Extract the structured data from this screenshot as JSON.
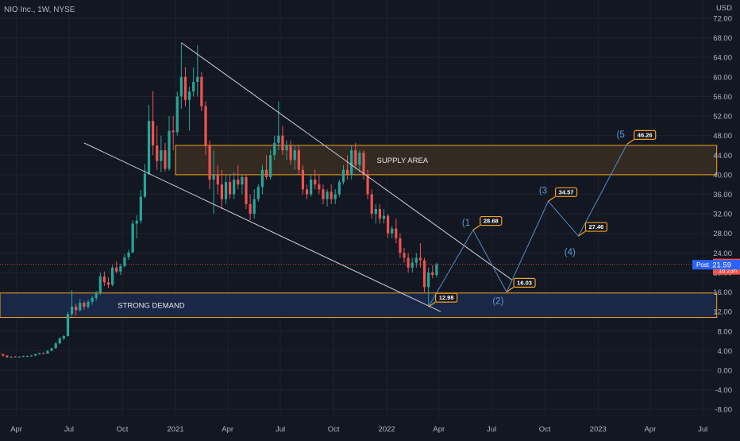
{
  "symbol_label": "NIO Inc., 1W, NYSE",
  "currency": "USD",
  "colors": {
    "background": "#131722",
    "grid": "#1e222d",
    "up": "#26a69a",
    "down": "#ef5350",
    "axis_text": "#b2b5be",
    "trendline": "#d1d4dc",
    "projection": "#4f8fc9",
    "wave_label": "#5b9bd5",
    "callout_border": "#f7a21b",
    "supply_fill": "#3a2e22",
    "demand_fill": "#1c2a4d",
    "zone_border": "#f7a21b",
    "last_price_bg": "#ef5350",
    "post_bg": "#2962ff"
  },
  "chart_data": {
    "type": "candlestick",
    "timeframe": "1W",
    "y_axis": {
      "ticks": [
        "72.00",
        "68.00",
        "64.00",
        "60.00",
        "56.00",
        "52.00",
        "48.00",
        "44.00",
        "40.00",
        "36.00",
        "32.00",
        "28.00",
        "24.00",
        "20.00",
        "16.00",
        "12.00",
        "8.00",
        "4.00",
        "0.00",
        "-4.00",
        "-8.00"
      ],
      "range": [
        -10,
        74
      ]
    },
    "x_axis": {
      "ticks": [
        "Apr",
        "Jul",
        "Oct",
        "2021",
        "Apr",
        "Jul",
        "Oct",
        "2022",
        "Apr",
        "Jul",
        "Oct",
        "2023",
        "Apr",
        "Jul"
      ],
      "range": [
        "2020-03-01",
        "2023-08-15"
      ]
    },
    "candles_approx": [
      [
        "2020-03-02",
        3.6,
        3.7,
        3.2,
        3.3
      ],
      [
        "2020-03-09",
        3.3,
        3.4,
        2.8,
        3.0
      ],
      [
        "2020-03-16",
        3.0,
        3.1,
        2.5,
        2.7
      ],
      [
        "2020-03-23",
        2.7,
        2.9,
        2.5,
        2.8
      ],
      [
        "2020-03-30",
        2.8,
        2.9,
        2.6,
        2.7
      ],
      [
        "2020-04-06",
        2.7,
        2.9,
        2.6,
        2.8
      ],
      [
        "2020-04-13",
        2.8,
        3.0,
        2.7,
        2.9
      ],
      [
        "2020-04-20",
        2.9,
        3.0,
        2.8,
        2.9
      ],
      [
        "2020-04-27",
        2.9,
        3.1,
        2.8,
        3.0
      ],
      [
        "2020-05-04",
        3.0,
        3.4,
        2.9,
        3.3
      ],
      [
        "2020-05-11",
        3.3,
        3.6,
        3.2,
        3.5
      ],
      [
        "2020-05-18",
        3.5,
        3.7,
        3.3,
        3.4
      ],
      [
        "2020-05-25",
        3.4,
        4.1,
        3.4,
        4.0
      ],
      [
        "2020-06-01",
        4.0,
        4.6,
        3.9,
        4.5
      ],
      [
        "2020-06-08",
        4.5,
        5.8,
        4.4,
        5.5
      ],
      [
        "2020-06-15",
        5.5,
        6.8,
        5.4,
        6.5
      ],
      [
        "2020-06-22",
        6.5,
        7.2,
        6.2,
        7.0
      ],
      [
        "2020-06-29",
        7.0,
        11.9,
        6.9,
        11.5
      ],
      [
        "2020-07-06",
        11.5,
        16.4,
        11.0,
        13.0
      ],
      [
        "2020-07-13",
        13.0,
        13.6,
        11.2,
        12.3
      ],
      [
        "2020-07-20",
        12.3,
        14.6,
        12.0,
        13.8
      ],
      [
        "2020-07-27",
        13.8,
        14.2,
        12.4,
        13.0
      ],
      [
        "2020-08-03",
        13.0,
        14.5,
        12.6,
        14.0
      ],
      [
        "2020-08-10",
        14.0,
        15.2,
        13.4,
        14.8
      ],
      [
        "2020-08-17",
        14.8,
        16.2,
        14.2,
        15.9
      ],
      [
        "2020-08-24",
        15.9,
        20.0,
        15.4,
        19.2
      ],
      [
        "2020-08-31",
        19.2,
        20.2,
        17.2,
        18.0
      ],
      [
        "2020-09-07",
        18.0,
        19.0,
        16.8,
        17.5
      ],
      [
        "2020-09-14",
        17.5,
        21.5,
        17.2,
        21.0
      ],
      [
        "2020-09-21",
        21.0,
        22.3,
        19.8,
        20.2
      ],
      [
        "2020-09-28",
        20.2,
        21.8,
        19.5,
        21.3
      ],
      [
        "2020-10-05",
        21.3,
        23.8,
        21.0,
        23.1
      ],
      [
        "2020-10-12",
        23.1,
        24.7,
        22.6,
        24.1
      ],
      [
        "2020-10-19",
        24.1,
        30.7,
        24.0,
        30.0
      ],
      [
        "2020-10-26",
        30.0,
        31.7,
        27.0,
        30.6
      ],
      [
        "2020-11-02",
        30.6,
        36.9,
        30.0,
        35.5
      ],
      [
        "2020-11-09",
        35.5,
        42.2,
        35.2,
        40.2
      ],
      [
        "2020-11-16",
        40.2,
        54.3,
        40.0,
        51.0
      ],
      [
        "2020-11-23",
        51.0,
        57.1,
        44.0,
        46.0
      ],
      [
        "2020-11-30",
        46.0,
        50.0,
        41.0,
        42.8
      ],
      [
        "2020-12-07",
        42.8,
        48.0,
        40.5,
        45.0
      ],
      [
        "2020-12-14",
        45.0,
        46.5,
        40.6,
        41.2
      ],
      [
        "2020-12-21",
        41.2,
        52.0,
        40.8,
        49.0
      ],
      [
        "2020-12-28",
        49.0,
        52.0,
        45.0,
        48.7
      ],
      [
        "2021-01-04",
        48.7,
        57.0,
        48.0,
        56.0
      ],
      [
        "2021-01-11",
        56.0,
        67.0,
        53.5,
        60.0
      ],
      [
        "2021-01-18",
        60.0,
        62.0,
        54.0,
        55.3
      ],
      [
        "2021-01-25",
        55.3,
        58.0,
        49.0,
        57.0
      ],
      [
        "2021-02-01",
        57.0,
        62.0,
        56.0,
        59.0
      ],
      [
        "2021-02-08",
        59.0,
        66.5,
        56.0,
        60.0
      ],
      [
        "2021-02-15",
        60.0,
        61.0,
        53.0,
        54.0
      ],
      [
        "2021-02-22",
        54.0,
        55.0,
        44.0,
        46.0
      ],
      [
        "2021-03-01",
        46.0,
        47.0,
        37.0,
        39.0
      ],
      [
        "2021-03-08",
        39.0,
        45.0,
        32.0,
        40.0
      ],
      [
        "2021-03-15",
        40.0,
        42.0,
        36.0,
        38.0
      ],
      [
        "2021-03-22",
        38.0,
        41.0,
        33.0,
        35.0
      ],
      [
        "2021-03-29",
        35.0,
        40.0,
        34.0,
        38.5
      ],
      [
        "2021-04-05",
        38.5,
        40.0,
        35.0,
        36.0
      ],
      [
        "2021-04-12",
        36.0,
        40.5,
        35.0,
        39.0
      ],
      [
        "2021-04-19",
        39.0,
        42.0,
        37.0,
        38.0
      ],
      [
        "2021-04-26",
        38.0,
        40.0,
        36.0,
        39.5
      ],
      [
        "2021-05-03",
        39.5,
        40.0,
        33.0,
        34.0
      ],
      [
        "2021-05-10",
        34.0,
        36.0,
        30.7,
        32.0
      ],
      [
        "2021-05-17",
        32.0,
        37.0,
        31.0,
        35.0
      ],
      [
        "2021-05-24",
        35.0,
        38.0,
        34.5,
        37.5
      ],
      [
        "2021-05-31",
        37.5,
        42.0,
        36.0,
        41.0
      ],
      [
        "2021-06-07",
        41.0,
        44.0,
        39.0,
        39.5
      ],
      [
        "2021-06-14",
        39.5,
        45.0,
        39.0,
        44.0
      ],
      [
        "2021-06-21",
        44.0,
        48.0,
        43.0,
        46.5
      ],
      [
        "2021-06-28",
        46.5,
        55.0,
        45.0,
        48.0
      ],
      [
        "2021-07-05",
        48.0,
        50.0,
        44.0,
        45.0
      ],
      [
        "2021-07-12",
        45.0,
        47.0,
        43.0,
        46.0
      ],
      [
        "2021-07-19",
        46.0,
        47.0,
        42.0,
        43.0
      ],
      [
        "2021-07-26",
        43.0,
        46.0,
        41.0,
        45.0
      ],
      [
        "2021-08-02",
        45.0,
        46.0,
        40.0,
        41.0
      ],
      [
        "2021-08-09",
        41.0,
        42.0,
        36.0,
        37.0
      ],
      [
        "2021-08-16",
        37.0,
        38.0,
        35.0,
        36.0
      ],
      [
        "2021-08-23",
        36.0,
        40.0,
        35.5,
        39.0
      ],
      [
        "2021-08-30",
        39.0,
        41.0,
        37.0,
        38.0
      ],
      [
        "2021-09-06",
        38.0,
        40.0,
        36.0,
        37.0
      ],
      [
        "2021-09-13",
        37.0,
        38.0,
        34.0,
        35.0
      ],
      [
        "2021-09-20",
        35.0,
        37.0,
        33.5,
        36.5
      ],
      [
        "2021-09-27",
        36.5,
        38.0,
        34.0,
        35.0
      ],
      [
        "2021-10-04",
        35.0,
        37.0,
        34.0,
        36.0
      ],
      [
        "2021-10-11",
        36.0,
        39.0,
        35.5,
        38.5
      ],
      [
        "2021-10-18",
        38.5,
        42.0,
        38.0,
        41.0
      ],
      [
        "2021-10-25",
        41.0,
        44.0,
        39.0,
        40.0
      ],
      [
        "2021-11-01",
        40.0,
        46.0,
        39.0,
        45.0
      ],
      [
        "2021-11-08",
        45.0,
        46.5,
        41.0,
        42.0
      ],
      [
        "2021-11-15",
        42.0,
        45.0,
        40.5,
        44.5
      ],
      [
        "2021-11-22",
        44.5,
        45.0,
        39.0,
        40.0
      ],
      [
        "2021-11-29",
        40.0,
        41.0,
        35.0,
        36.0
      ],
      [
        "2021-12-06",
        36.0,
        37.0,
        31.0,
        32.0
      ],
      [
        "2021-12-13",
        32.0,
        34.0,
        30.0,
        33.0
      ],
      [
        "2021-12-20",
        33.0,
        34.0,
        30.0,
        31.0
      ],
      [
        "2021-12-27",
        31.0,
        33.0,
        30.0,
        31.6
      ],
      [
        "2022-01-03",
        31.6,
        32.0,
        27.0,
        28.0
      ],
      [
        "2022-01-10",
        28.0,
        29.5,
        27.0,
        29.0
      ],
      [
        "2022-01-17",
        29.0,
        31.0,
        26.0,
        27.0
      ],
      [
        "2022-01-24",
        27.0,
        28.0,
        23.0,
        24.0
      ],
      [
        "2022-01-31",
        24.0,
        25.0,
        22.0,
        23.0
      ],
      [
        "2022-02-07",
        23.0,
        24.0,
        20.0,
        21.0
      ],
      [
        "2022-02-14",
        21.0,
        23.0,
        20.0,
        22.0
      ],
      [
        "2022-02-21",
        22.0,
        24.0,
        21.0,
        23.0
      ],
      [
        "2022-02-28",
        23.0,
        26.0,
        21.0,
        22.5
      ],
      [
        "2022-03-07",
        22.5,
        23.0,
        16.0,
        17.0
      ],
      [
        "2022-03-14",
        17.0,
        21.0,
        12.98,
        20.0
      ],
      [
        "2022-03-21",
        20.0,
        21.5,
        18.8,
        19.5
      ],
      [
        "2022-03-28",
        19.5,
        22.0,
        19.0,
        21.68
      ]
    ],
    "last_price": "21.68",
    "last_price_countdown": "1d 23h",
    "post_label": "Post",
    "post_price": "21.59",
    "zones": [
      {
        "label": "SUPPLY AREA",
        "y_low": 40.0,
        "y_high": 46.0,
        "x_start": "2021-01-01",
        "x_end": "2023-07-25"
      },
      {
        "label": "STRONG DEMAND",
        "y_low": 10.8,
        "y_high": 15.8,
        "x_start": "2020-03-01",
        "x_end": "2023-07-25"
      }
    ],
    "trendlines": [
      {
        "from": [
          "2021-01-11",
          67.0
        ],
        "to": [
          "2022-08-05",
          18.5
        ]
      },
      {
        "from": [
          "2020-07-27",
          46.5
        ],
        "to": [
          "2022-04-04",
          12.0
        ]
      }
    ],
    "projection_path": [
      [
        "2022-03-14",
        12.98
      ],
      [
        "2022-05-30",
        28.68
      ],
      [
        "2022-07-27",
        16.03
      ],
      [
        "2022-10-07",
        34.57
      ],
      [
        "2022-11-28",
        27.46
      ],
      [
        "2023-02-20",
        46.26
      ]
    ],
    "wave_labels": [
      {
        "label": "(1",
        "x": "2022-05-25",
        "y": 29.6
      },
      {
        "label": "(2)",
        "x": "2022-07-22",
        "y": 13.6
      },
      {
        "label": "(3",
        "x": "2022-10-05",
        "y": 36.2
      },
      {
        "label": "(4)",
        "x": "2022-11-23",
        "y": 23.6
      },
      {
        "label": "(5",
        "x": "2023-02-16",
        "y": 47.6
      }
    ],
    "callouts": [
      {
        "label": "12.98",
        "x": "2022-03-14",
        "y": 12.98
      },
      {
        "label": "28.68",
        "x": "2022-05-30",
        "y": 28.68
      },
      {
        "label": "16.03",
        "x": "2022-07-27",
        "y": 16.03
      },
      {
        "label": "34.57",
        "x": "2022-10-07",
        "y": 34.57
      },
      {
        "label": "27.46",
        "x": "2022-11-28",
        "y": 27.46
      },
      {
        "label": "46.26",
        "x": "2023-02-20",
        "y": 46.26
      }
    ]
  }
}
